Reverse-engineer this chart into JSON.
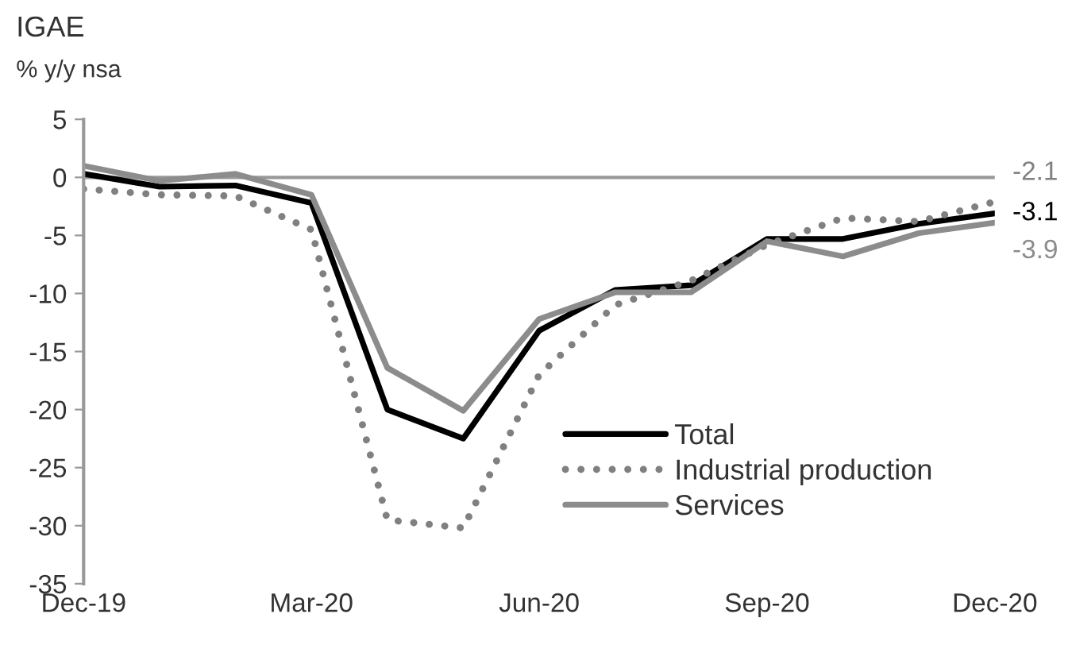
{
  "chart_data": {
    "type": "line",
    "title": "IGAE",
    "subtitle": "% y/y nsa",
    "x": [
      "2019-12",
      "2020-01",
      "2020-02",
      "2020-03",
      "2020-04",
      "2020-05",
      "2020-06",
      "2020-07",
      "2020-08",
      "2020-09",
      "2020-10",
      "2020-11",
      "2020-12"
    ],
    "series": [
      {
        "name": "Total",
        "color": "#000000",
        "line_style": "solid",
        "values": [
          0.3,
          -0.8,
          -0.7,
          -2.2,
          -20.0,
          -22.5,
          -13.2,
          -9.7,
          -9.3,
          -5.3,
          -5.3,
          -4.0,
          -3.1
        ]
      },
      {
        "name": "Industrial production",
        "color": "#808080",
        "line_style": "dotted",
        "values": [
          -1.0,
          -1.5,
          -1.6,
          -4.5,
          -29.5,
          -30.2,
          -17.0,
          -11.0,
          -8.9,
          -5.8,
          -3.5,
          -3.8,
          -2.1
        ]
      },
      {
        "name": "Services",
        "color": "#8c8c8c",
        "line_style": "solid",
        "values": [
          1.0,
          -0.3,
          0.3,
          -1.5,
          -16.4,
          -20.1,
          -12.2,
          -9.9,
          -9.9,
          -5.5,
          -6.8,
          -4.8,
          -3.9
        ]
      }
    ],
    "xlim": [
      "2019-12",
      "2020-12"
    ],
    "xticks": [
      {
        "value": "2019-12",
        "label": "Dec-19"
      },
      {
        "value": "2020-03",
        "label": "Mar-20"
      },
      {
        "value": "2020-06",
        "label": "Jun-20"
      },
      {
        "value": "2020-09",
        "label": "Sep-20"
      },
      {
        "value": "2020-12",
        "label": "Dec-20"
      }
    ],
    "ylim": [
      -35,
      5
    ],
    "yticks": [
      -35,
      -30,
      -25,
      -20,
      -15,
      -10,
      -5,
      0,
      5
    ],
    "annotations": [
      {
        "text": "-2.1",
        "x": "2020-12",
        "y": -2.1
      },
      {
        "text": "-3.1",
        "x": "2020-12",
        "y": -3.1
      },
      {
        "text": "-3.9",
        "x": "2020-12",
        "y": -3.9
      }
    ],
    "ref_lines": [
      {
        "axis": "y",
        "value": 0,
        "color": "#999999"
      }
    ],
    "legend": "bottom right",
    "marker": "none"
  }
}
